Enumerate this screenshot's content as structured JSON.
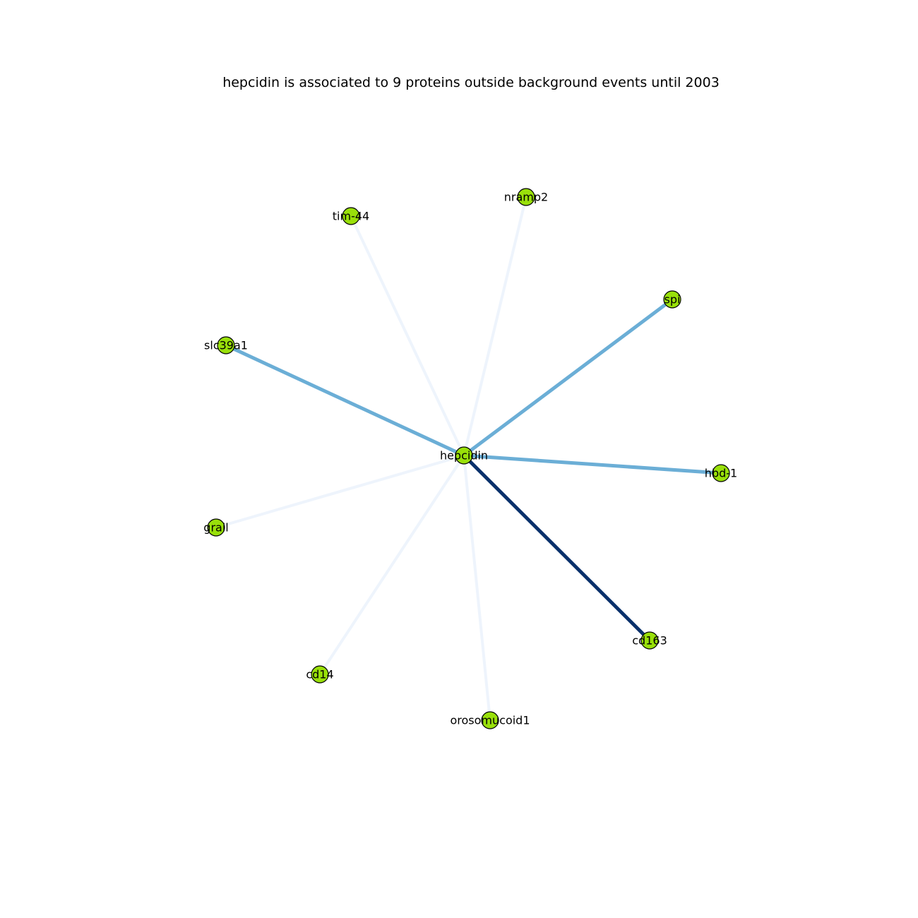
{
  "title": "hepcidin is associated to 9 proteins outside background events until 2003",
  "colors": {
    "node_fill": "#99e00a",
    "node_stroke": "#000000",
    "edge_strong": "#08306b",
    "edge_medium": "#6baed6",
    "edge_weak": "#eef4fc"
  },
  "graph": {
    "center": "hepcidin",
    "nodes": [
      {
        "id": "hepcidin",
        "label": "hepcidin"
      },
      {
        "id": "nramp2",
        "label": "nramp2"
      },
      {
        "id": "tim-44",
        "label": "tim-44"
      },
      {
        "id": "spi",
        "label": "spi"
      },
      {
        "id": "slc39a1",
        "label": "slc39a1"
      },
      {
        "id": "hbd-1",
        "label": "hbd-1"
      },
      {
        "id": "grail",
        "label": "grail"
      },
      {
        "id": "cd163",
        "label": "cd163"
      },
      {
        "id": "cd14",
        "label": "cd14"
      },
      {
        "id": "orosomucoid1",
        "label": "orosomucoid1"
      }
    ],
    "edges": [
      {
        "source": "hepcidin",
        "target": "nramp2",
        "strength": "weak"
      },
      {
        "source": "hepcidin",
        "target": "tim-44",
        "strength": "weak"
      },
      {
        "source": "hepcidin",
        "target": "spi",
        "strength": "medium"
      },
      {
        "source": "hepcidin",
        "target": "slc39a1",
        "strength": "medium"
      },
      {
        "source": "hepcidin",
        "target": "hbd-1",
        "strength": "medium"
      },
      {
        "source": "hepcidin",
        "target": "grail",
        "strength": "weak"
      },
      {
        "source": "hepcidin",
        "target": "cd163",
        "strength": "strong"
      },
      {
        "source": "hepcidin",
        "target": "cd14",
        "strength": "weak"
      },
      {
        "source": "hepcidin",
        "target": "orosomucoid1",
        "strength": "weak"
      }
    ]
  }
}
